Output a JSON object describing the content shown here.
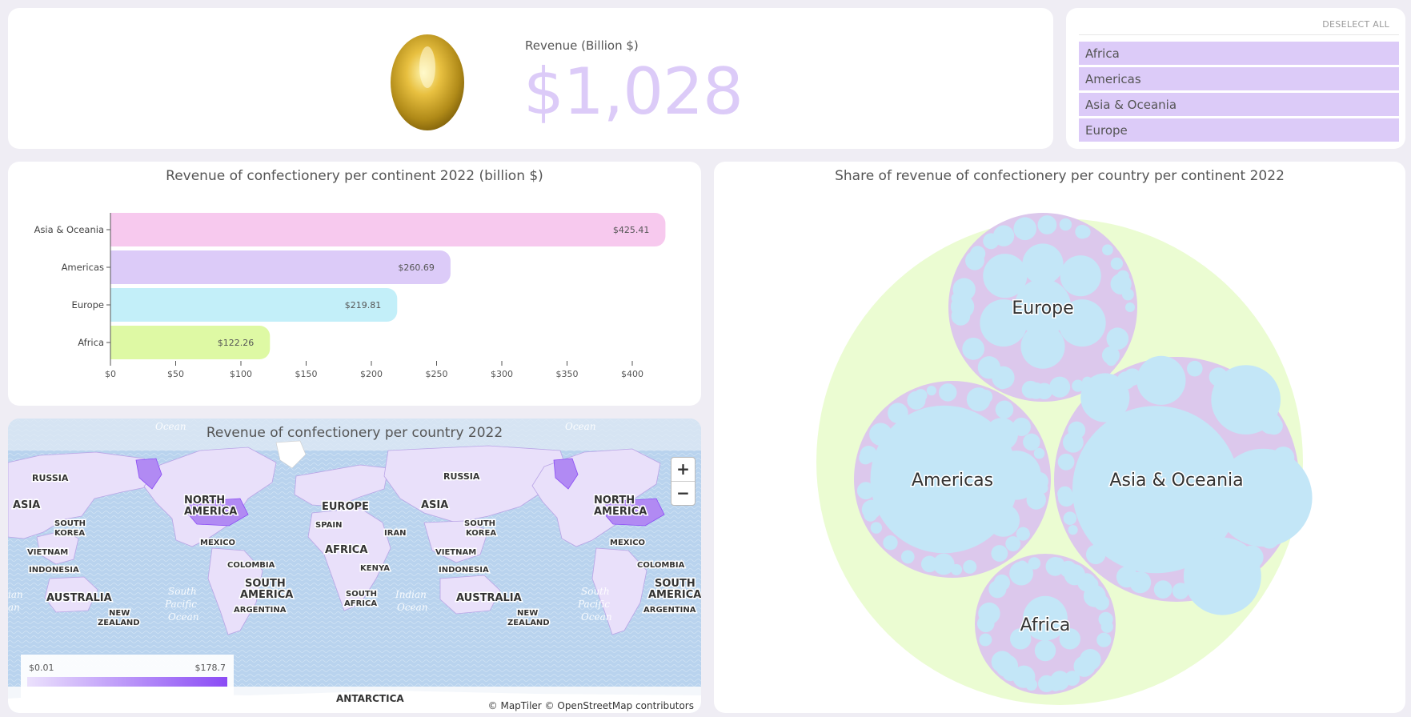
{
  "kpi": {
    "label": "Revenue (Billion $)",
    "value": "$1,028",
    "icon": "golden-egg-icon"
  },
  "filters": {
    "deselect_label": "DESELECT ALL",
    "items": [
      "Africa",
      "Americas",
      "Asia & Oceania",
      "Europe"
    ],
    "item_color": "#dccbf8"
  },
  "chart_data": [
    {
      "type": "bar",
      "orientation": "horizontal",
      "title": "Revenue of confectionery per continent 2022 (billion $)",
      "categories": [
        "Asia & Oceania",
        "Americas",
        "Europe",
        "Africa"
      ],
      "values": [
        425.41,
        260.69,
        219.81,
        122.26
      ],
      "value_labels": [
        "$425.41",
        "$260.69",
        "$219.81",
        "$122.26"
      ],
      "colors": [
        "#f7c9ee",
        "#dccbf8",
        "#c3eff9",
        "#def9a4"
      ],
      "x_ticks": [
        "$0",
        "$50",
        "$100",
        "$150",
        "$200",
        "$250",
        "$300",
        "$350",
        "$400"
      ],
      "xlim": [
        0,
        425.41
      ],
      "grid": false
    },
    {
      "type": "choropleth-map",
      "title": "Revenue of confectionery per country 2022",
      "legend_min": "$0.01",
      "legend_max": "$178.7",
      "color_min": "#ebe1fc",
      "color_max": "#8a4bf5",
      "attribution": "© MapTiler © OpenStreetMap contributors",
      "zoom_in": "+",
      "zoom_out": "−",
      "labels": [
        "RUSSIA",
        "ASIA",
        "SOUTH",
        "KOREA",
        "NORTH",
        "AMERICA",
        "VIETNAM",
        "MEXICO",
        "INDONESIA",
        "COLOMBIA",
        "SOUTH",
        "AMERICA",
        "AUSTRALIA",
        "NEW",
        "ZEALAND",
        "ARGENTINA",
        "EUROPE",
        "SPAIN",
        "IRAN",
        "AFRICA",
        "KENYA",
        "SOUTH",
        "AFRICA",
        "ANTARCTICA",
        "RUSSIA",
        "ASIA",
        "SOUTH",
        "KOREA",
        "VIETNAM",
        "INDONESIA",
        "AUSTRALIA",
        "NEW",
        "ZEALAND",
        "NORTH",
        "AMERICA",
        "MEXICO",
        "COLOMBIA",
        "SOUTH",
        "AMERICA",
        "ARGENTINA"
      ],
      "ocean_labels": [
        "Ocean",
        "Ocean",
        "South",
        "Pacific",
        "Ocean",
        "Indian",
        "Ocean",
        "South",
        "Pacific",
        "Ocean",
        "ian",
        "an"
      ]
    },
    {
      "type": "circle-packing",
      "title": "Share of revenue of confectionery per country per continent 2022",
      "groups": [
        {
          "name": "Europe",
          "value": 219.81
        },
        {
          "name": "Americas",
          "value": 260.69
        },
        {
          "name": "Asia & Oceania",
          "value": 425.41
        },
        {
          "name": "Africa",
          "value": 122.26
        }
      ],
      "colors": {
        "root": "#ebfcd2",
        "group": "#dcc8ec",
        "leaf": "#c3e6f7"
      }
    }
  ]
}
